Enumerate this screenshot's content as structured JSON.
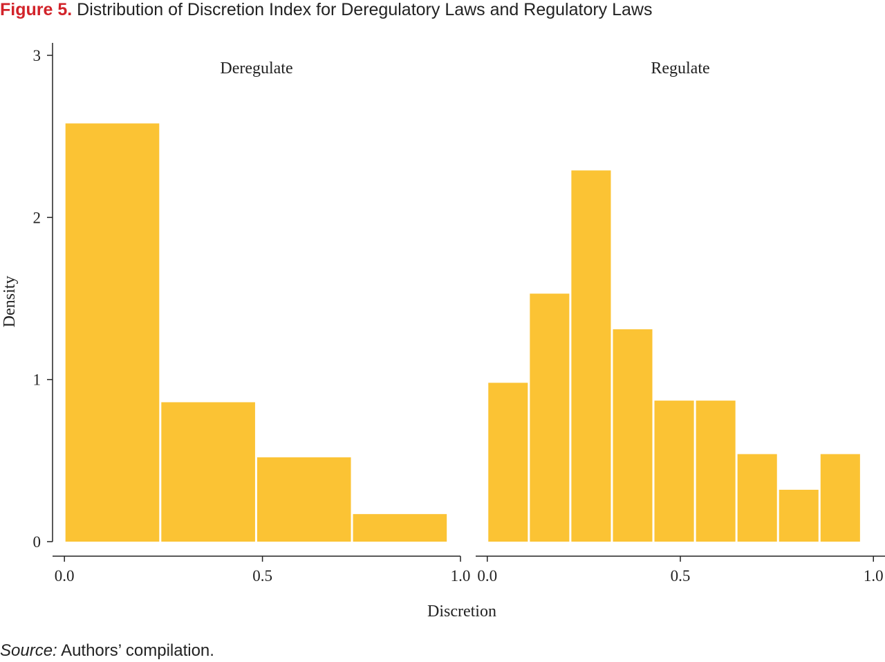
{
  "figure": {
    "label": "Figure 5.",
    "title": "Distribution of Discretion Index for Deregulatory Laws and Regulatory Laws",
    "source_label": "Source:",
    "source_text": " Authors’ compilation."
  },
  "chart_data": {
    "type": "bar",
    "title": "Distribution of Discretion Index for Deregulatory Laws and Regulatory Laws",
    "xlabel": "Discretion",
    "ylabel": "Density",
    "ylim": [
      0,
      3
    ],
    "yticks": [
      0,
      1,
      2,
      3
    ],
    "ytick_labels": [
      "0",
      "1",
      "2",
      "3"
    ],
    "xticks": [
      0,
      0.5,
      1
    ],
    "xtick_labels": [
      "0.0",
      "0.5",
      "1.0"
    ],
    "bar_color": "#fbc334",
    "grid": false,
    "legend": "none",
    "panels": [
      {
        "name": "Deregulate",
        "xlim": [
          -0.03,
          1.0
        ],
        "bins": [
          {
            "x0": 0.0,
            "x1": 0.242,
            "value": 2.58
          },
          {
            "x0": 0.242,
            "x1": 0.484,
            "value": 0.86
          },
          {
            "x0": 0.484,
            "x1": 0.726,
            "value": 0.52
          },
          {
            "x0": 0.726,
            "x1": 0.968,
            "value": 0.17
          }
        ]
      },
      {
        "name": "Regulate",
        "xlim": [
          -0.03,
          1.03
        ],
        "bins": [
          {
            "x0": 0.0,
            "x1": 0.1076,
            "value": 0.98
          },
          {
            "x0": 0.1076,
            "x1": 0.2151,
            "value": 1.53
          },
          {
            "x0": 0.2151,
            "x1": 0.3227,
            "value": 2.29
          },
          {
            "x0": 0.3227,
            "x1": 0.4302,
            "value": 1.31
          },
          {
            "x0": 0.4302,
            "x1": 0.5378,
            "value": 0.87
          },
          {
            "x0": 0.5378,
            "x1": 0.6453,
            "value": 0.87
          },
          {
            "x0": 0.6453,
            "x1": 0.7529,
            "value": 0.54
          },
          {
            "x0": 0.7529,
            "x1": 0.8604,
            "value": 0.32
          },
          {
            "x0": 0.8604,
            "x1": 0.968,
            "value": 0.54
          }
        ]
      }
    ]
  }
}
